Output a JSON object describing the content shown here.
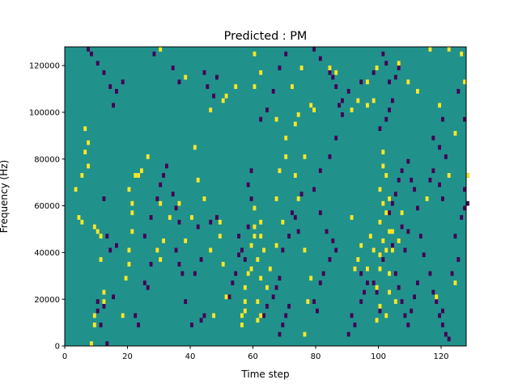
{
  "chart_data": {
    "type": "heatmap",
    "title": "Predicted : PM",
    "xlabel": "Time step",
    "ylabel": "Frequency (Hz)",
    "xlim": [
      0,
      128
    ],
    "ylim": [
      0,
      128000
    ],
    "x_ticks": [
      0,
      20,
      40,
      60,
      80,
      100,
      120
    ],
    "x_tick_labels": [
      "0",
      "20",
      "40",
      "60",
      "80",
      "100",
      "120"
    ],
    "y_ticks": [
      0,
      20000,
      40000,
      60000,
      80000,
      100000,
      120000
    ],
    "y_tick_labels": [
      "0",
      "20000",
      "40000",
      "60000",
      "80000",
      "100000",
      "120000"
    ],
    "grid": false,
    "colormap": "viridis",
    "colors": {
      "background": "#21918c",
      "high": "#fde725",
      "low": "#440154"
    },
    "cell_height_hz": 2000,
    "yellow_cells": [
      [
        8,
        0
      ],
      [
        9,
        8000
      ],
      [
        9,
        12000
      ],
      [
        12,
        18000
      ],
      [
        12,
        22000
      ],
      [
        11,
        36000
      ],
      [
        11,
        46000
      ],
      [
        10,
        48000
      ],
      [
        9,
        50000
      ],
      [
        5,
        52000
      ],
      [
        4,
        54000
      ],
      [
        3,
        66000
      ],
      [
        5,
        72000
      ],
      [
        7,
        76000
      ],
      [
        6,
        82000
      ],
      [
        7,
        86000
      ],
      [
        6,
        92000
      ],
      [
        18,
        12000
      ],
      [
        19,
        28000
      ],
      [
        20,
        34000
      ],
      [
        20,
        40000
      ],
      [
        21,
        48000
      ],
      [
        21,
        56000
      ],
      [
        21,
        60000
      ],
      [
        20,
        66000
      ],
      [
        22,
        72000
      ],
      [
        24,
        74000
      ],
      [
        26,
        80000
      ],
      [
        30,
        36000
      ],
      [
        29,
        40000
      ],
      [
        30,
        60000
      ],
      [
        31,
        44000
      ],
      [
        33,
        54000
      ],
      [
        36,
        60000
      ],
      [
        38,
        44000
      ],
      [
        40,
        54000
      ],
      [
        41,
        84000
      ],
      [
        42,
        70000
      ],
      [
        44,
        62000
      ],
      [
        46,
        40000
      ],
      [
        47,
        12000
      ],
      [
        49,
        46000
      ],
      [
        49,
        52000
      ],
      [
        50,
        34000
      ],
      [
        51,
        20000
      ],
      [
        56,
        8000
      ],
      [
        56,
        12000
      ],
      [
        57,
        14000
      ],
      [
        57,
        18000
      ],
      [
        57,
        24000
      ],
      [
        58,
        30000
      ],
      [
        59,
        32000
      ],
      [
        59,
        42000
      ],
      [
        60,
        46000
      ],
      [
        60,
        50000
      ],
      [
        61,
        10000
      ],
      [
        62,
        12000
      ],
      [
        61,
        18000
      ],
      [
        62,
        28000
      ],
      [
        61,
        36000
      ],
      [
        62,
        46000
      ],
      [
        63,
        40000
      ],
      [
        62,
        52000
      ],
      [
        60,
        58000
      ],
      [
        64,
        24000
      ],
      [
        65,
        32000
      ],
      [
        67,
        42000
      ],
      [
        69,
        52000
      ],
      [
        67,
        62000
      ],
      [
        68,
        74000
      ],
      [
        70,
        80000
      ],
      [
        70,
        88000
      ],
      [
        73,
        94000
      ],
      [
        76,
        4000
      ],
      [
        77,
        18000
      ],
      [
        78,
        28000
      ],
      [
        76,
        40000
      ],
      [
        74,
        62000
      ],
      [
        73,
        72000
      ],
      [
        76,
        80000
      ],
      [
        99,
        10000
      ],
      [
        100,
        16000
      ],
      [
        99,
        24000
      ],
      [
        100,
        32000
      ],
      [
        100,
        38000
      ],
      [
        101,
        44000
      ],
      [
        100,
        52000
      ],
      [
        101,
        60000
      ],
      [
        100,
        66000
      ],
      [
        101,
        76000
      ],
      [
        101,
        82000
      ],
      [
        102,
        12000
      ],
      [
        103,
        22000
      ],
      [
        103,
        30000
      ],
      [
        102,
        40000
      ],
      [
        103,
        48000
      ],
      [
        102,
        56000
      ],
      [
        103,
        62000
      ],
      [
        102,
        72000
      ],
      [
        104,
        40000
      ],
      [
        104,
        48000
      ],
      [
        105,
        18000
      ],
      [
        106,
        44000
      ],
      [
        107,
        56000
      ],
      [
        97,
        46000
      ],
      [
        96,
        32000
      ],
      [
        93,
        36000
      ],
      [
        92,
        32000
      ],
      [
        94,
        42000
      ],
      [
        98,
        40000
      ],
      [
        91,
        54000
      ],
      [
        115,
        62000
      ],
      [
        118,
        20000
      ],
      [
        124,
        26000
      ],
      [
        122,
        72000
      ],
      [
        128,
        72000
      ],
      [
        124,
        90000
      ],
      [
        119,
        102000
      ],
      [
        126,
        124000
      ],
      [
        122,
        126000
      ],
      [
        67,
        96000
      ],
      [
        74,
        98000
      ],
      [
        79,
        100000
      ],
      [
        78,
        102000
      ],
      [
        91,
        100000
      ],
      [
        93,
        104000
      ],
      [
        96,
        112000
      ],
      [
        98,
        104000
      ],
      [
        109,
        112000
      ],
      [
        112,
        108000
      ],
      [
        127,
        112000
      ],
      [
        23,
        72000
      ],
      [
        30,
        126000
      ],
      [
        38,
        114000
      ],
      [
        46,
        100000
      ],
      [
        50,
        104000
      ],
      [
        51,
        106000
      ],
      [
        54,
        110000
      ],
      [
        60,
        110000
      ],
      [
        62,
        116000
      ],
      [
        60,
        124000
      ],
      [
        72,
        110000
      ],
      [
        75,
        118000
      ],
      [
        84,
        118000
      ],
      [
        86,
        116000
      ],
      [
        99,
        118000
      ],
      [
        106,
        120000
      ],
      [
        116,
        126000
      ],
      [
        96,
        102000
      ]
    ],
    "purple_cells": [
      [
        10,
        14000
      ],
      [
        10,
        18000
      ],
      [
        11,
        8000
      ],
      [
        13,
        0
      ],
      [
        12,
        16000
      ],
      [
        15,
        20000
      ],
      [
        14,
        40000
      ],
      [
        16,
        42000
      ],
      [
        13,
        46000
      ],
      [
        12,
        62000
      ],
      [
        22,
        12000
      ],
      [
        23,
        8000
      ],
      [
        25,
        26000
      ],
      [
        26,
        24000
      ],
      [
        27,
        34000
      ],
      [
        25,
        46000
      ],
      [
        27,
        54000
      ],
      [
        29,
        62000
      ],
      [
        30,
        68000
      ],
      [
        31,
        72000
      ],
      [
        32,
        76000
      ],
      [
        34,
        64000
      ],
      [
        35,
        58000
      ],
      [
        36,
        52000
      ],
      [
        35,
        40000
      ],
      [
        36,
        34000
      ],
      [
        37,
        30000
      ],
      [
        38,
        18000
      ],
      [
        40,
        8000
      ],
      [
        43,
        10000
      ],
      [
        44,
        12000
      ],
      [
        41,
        30000
      ],
      [
        43,
        36000
      ],
      [
        42,
        50000
      ],
      [
        46,
        52000
      ],
      [
        48,
        54000
      ],
      [
        52,
        20000
      ],
      [
        53,
        26000
      ],
      [
        54,
        30000
      ],
      [
        55,
        38000
      ],
      [
        56,
        40000
      ],
      [
        57,
        36000
      ],
      [
        55,
        46000
      ],
      [
        58,
        50000
      ],
      [
        59,
        62000
      ],
      [
        58,
        68000
      ],
      [
        59,
        74000
      ],
      [
        63,
        12000
      ],
      [
        64,
        16000
      ],
      [
        66,
        20000
      ],
      [
        67,
        24000
      ],
      [
        68,
        28000
      ],
      [
        69,
        8000
      ],
      [
        70,
        12000
      ],
      [
        71,
        16000
      ],
      [
        68,
        4000
      ],
      [
        69,
        40000
      ],
      [
        71,
        46000
      ],
      [
        73,
        54000
      ],
      [
        74,
        48000
      ],
      [
        72,
        56000
      ],
      [
        75,
        64000
      ],
      [
        79,
        18000
      ],
      [
        80,
        14000
      ],
      [
        81,
        26000
      ],
      [
        82,
        30000
      ],
      [
        84,
        36000
      ],
      [
        85,
        44000
      ],
      [
        86,
        40000
      ],
      [
        83,
        48000
      ],
      [
        81,
        56000
      ],
      [
        79,
        66000
      ],
      [
        81,
        74000
      ],
      [
        84,
        80000
      ],
      [
        86,
        88000
      ],
      [
        88,
        98000
      ],
      [
        87,
        102000
      ],
      [
        90,
        4000
      ],
      [
        91,
        12000
      ],
      [
        92,
        8000
      ],
      [
        94,
        18000
      ],
      [
        95,
        22000
      ],
      [
        96,
        26000
      ],
      [
        94,
        30000
      ],
      [
        98,
        26000
      ],
      [
        99,
        22000
      ],
      [
        100,
        14000
      ],
      [
        101,
        36000
      ],
      [
        104,
        42000
      ],
      [
        105,
        30000
      ],
      [
        106,
        24000
      ],
      [
        107,
        18000
      ],
      [
        108,
        12000
      ],
      [
        109,
        8000
      ],
      [
        110,
        14000
      ],
      [
        111,
        20000
      ],
      [
        112,
        26000
      ],
      [
        103,
        56000
      ],
      [
        104,
        60000
      ],
      [
        105,
        64000
      ],
      [
        106,
        70000
      ],
      [
        107,
        74000
      ],
      [
        109,
        78000
      ],
      [
        110,
        70000
      ],
      [
        111,
        66000
      ],
      [
        112,
        58000
      ],
      [
        109,
        48000
      ],
      [
        108,
        40000
      ],
      [
        107,
        50000
      ],
      [
        113,
        46000
      ],
      [
        114,
        38000
      ],
      [
        116,
        30000
      ],
      [
        117,
        22000
      ],
      [
        118,
        18000
      ],
      [
        119,
        12000
      ],
      [
        120,
        8000
      ],
      [
        121,
        4000
      ],
      [
        122,
        2000
      ],
      [
        120,
        14000
      ],
      [
        123,
        30000
      ],
      [
        125,
        36000
      ],
      [
        124,
        46000
      ],
      [
        126,
        54000
      ],
      [
        127,
        58000
      ],
      [
        128,
        60000
      ],
      [
        127,
        66000
      ],
      [
        128,
        72000
      ],
      [
        116,
        70000
      ],
      [
        117,
        74000
      ],
      [
        119,
        68000
      ],
      [
        120,
        62000
      ],
      [
        121,
        80000
      ],
      [
        119,
        84000
      ],
      [
        117,
        88000
      ],
      [
        120,
        96000
      ],
      [
        100,
        92000
      ],
      [
        102,
        96000
      ],
      [
        103,
        100000
      ],
      [
        104,
        104000
      ],
      [
        103,
        112000
      ],
      [
        105,
        114000
      ],
      [
        106,
        118000
      ],
      [
        102,
        120000
      ],
      [
        101,
        124000
      ],
      [
        98,
        116000
      ],
      [
        94,
        112000
      ],
      [
        90,
        108000
      ],
      [
        88,
        104000
      ],
      [
        86,
        110000
      ],
      [
        85,
        114000
      ],
      [
        84,
        116000
      ],
      [
        81,
        122000
      ],
      [
        79,
        126000
      ],
      [
        70,
        124000
      ],
      [
        68,
        118000
      ],
      [
        66,
        108000
      ],
      [
        64,
        100000
      ],
      [
        62,
        96000
      ],
      [
        47,
        106000
      ],
      [
        45,
        110000
      ],
      [
        44,
        116000
      ],
      [
        48,
        114000
      ],
      [
        36,
        112000
      ],
      [
        34,
        118000
      ],
      [
        28,
        124000
      ],
      [
        18,
        112000
      ],
      [
        16,
        108000
      ],
      [
        15,
        102000
      ],
      [
        14,
        110000
      ],
      [
        12,
        116000
      ],
      [
        10,
        120000
      ],
      [
        8,
        124000
      ],
      [
        7,
        126000
      ],
      [
        125,
        108000
      ],
      [
        127,
        96000
      ]
    ]
  }
}
